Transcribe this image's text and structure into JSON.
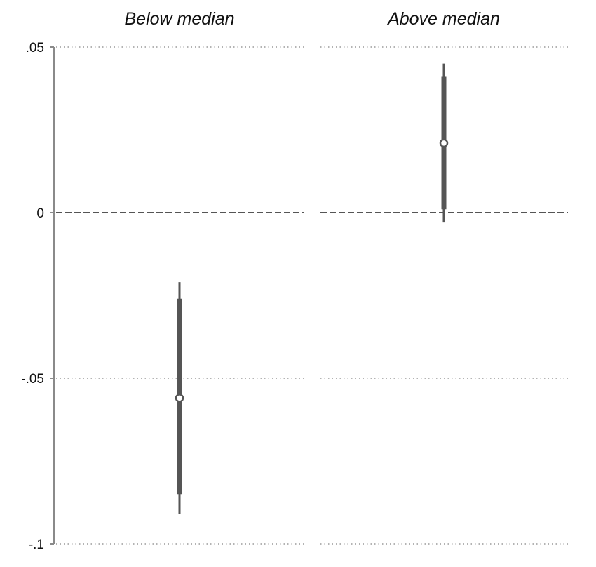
{
  "chart_data": {
    "type": "coefficient_plot",
    "title": "",
    "ylabel": "",
    "xlabel": "",
    "ylim": [
      -0.1,
      0.05
    ],
    "yticks": [
      {
        "value": 0.05,
        "label": ".05"
      },
      {
        "value": 0,
        "label": "0"
      },
      {
        "value": -0.05,
        "label": "-.05"
      },
      {
        "value": -0.1,
        "label": "-.1"
      }
    ],
    "grid": true,
    "reference_line": 0,
    "panels": [
      {
        "title": "Below median",
        "estimate": -0.056,
        "ci90": [
          -0.085,
          -0.026
        ],
        "ci95": [
          -0.091,
          -0.021
        ]
      },
      {
        "title": "Above median",
        "estimate": 0.021,
        "ci90": [
          0.001,
          0.041
        ],
        "ci95": [
          -0.003,
          0.045
        ]
      }
    ],
    "colors": {
      "marker": "#555555",
      "grid": "#9a9a9a",
      "axis": "#8a8a8a",
      "zero_line": "#555555"
    }
  }
}
